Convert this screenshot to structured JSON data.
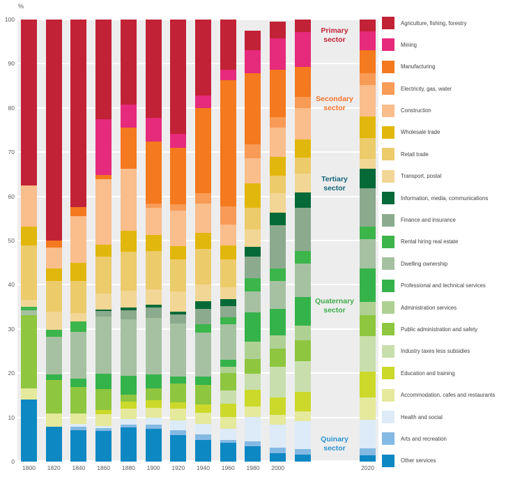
{
  "y_axis": {
    "unit_label": "%",
    "ticks": [
      100,
      90,
      80,
      70,
      60,
      50,
      40,
      30,
      20,
      10,
      0
    ]
  },
  "sector_labels": [
    {
      "lines": [
        "Primary",
        "sector"
      ],
      "color": "#c22236"
    },
    {
      "lines": [
        "Secondary",
        "sector"
      ],
      "color": "#f4732a"
    },
    {
      "lines": [
        "Tertiary",
        "sector"
      ],
      "color": "#136577"
    },
    {
      "lines": [
        "Quaternary",
        "sector"
      ],
      "color": "#41ab49"
    },
    {
      "lines": [
        "Quinary",
        "sector"
      ],
      "color": "#2a93d0"
    }
  ],
  "chart_data": {
    "type": "bar",
    "stacked": true,
    "unit": "%",
    "ylim": [
      0,
      100
    ],
    "grid": true,
    "legend_position": "right",
    "y_ticks": [
      100,
      90,
      80,
      70,
      60,
      50,
      40,
      30,
      20,
      10,
      0
    ],
    "note": "Stacked shares of industry sectors; categories listed top-of-stack first; one unlabelled bar between 2000 and the separated 2020 bar",
    "categories": [
      {
        "name": "Agriculture, fishing, forestry",
        "slug": "agriculture-fishing-forestry",
        "color": "#c22236"
      },
      {
        "name": "Mining",
        "slug": "mining",
        "color": "#e62a7c"
      },
      {
        "name": "Manufacturing",
        "slug": "manufacturing",
        "color": "#f4791f"
      },
      {
        "name": "Electricity, gas, water",
        "slug": "electricity-gas-water",
        "color": "#f89b57"
      },
      {
        "name": "Construction",
        "slug": "construction",
        "color": "#fabd8c"
      },
      {
        "name": "Wholesale trade",
        "slug": "wholesale-trade",
        "color": "#e2b70d"
      },
      {
        "name": "Retail trade",
        "slug": "retail-trade",
        "color": "#eccb6b"
      },
      {
        "name": "Transport, postal",
        "slug": "transport-postal",
        "color": "#f1d695"
      },
      {
        "name": "Information, media, communications",
        "slug": "information-media-communications",
        "color": "#056a38"
      },
      {
        "name": "Finance and insurance",
        "slug": "finance-and-insurance",
        "color": "#8caa8e"
      },
      {
        "name": "Rental hiring real estate",
        "slug": "rental-hiring-real-estate",
        "color": "#3cb54b"
      },
      {
        "name": "Dwelling ownership",
        "slug": "dwelling-ownership",
        "color": "#a6c1a2"
      },
      {
        "name": "Professional and technical services",
        "slug": "professional-and-technical-services",
        "color": "#35b34b"
      },
      {
        "name": "Administration services",
        "slug": "administration-services",
        "color": "#aed193"
      },
      {
        "name": "Public administration and safety",
        "slug": "public-administration-and-safety",
        "color": "#8ec63f"
      },
      {
        "name": "Industry taxes less subsidies",
        "slug": "industry-taxes-less-subsidies",
        "color": "#c8dfad"
      },
      {
        "name": "Education and training",
        "slug": "education-and-training",
        "color": "#ccd92b"
      },
      {
        "name": "Accommodation, cafes and restaurants",
        "slug": "accommodation-cafes-and-restaurants",
        "color": "#e5e99b"
      },
      {
        "name": "Health and social",
        "slug": "health-and-social",
        "color": "#dcebf7"
      },
      {
        "name": "Arts and recreation",
        "slug": "arts-and-recreation",
        "color": "#84b9e3"
      },
      {
        "name": "Other services",
        "slug": "other-services",
        "color": "#0e88c3"
      }
    ],
    "bars": [
      {
        "label": "1800",
        "values": [
          37.5,
          0,
          0,
          0,
          9.3,
          4.3,
          12.3,
          1.6,
          0,
          0,
          0.7,
          1.2,
          0,
          0,
          16.6,
          0,
          0,
          2.4,
          0,
          0,
          14.1
        ]
      },
      {
        "label": "1820",
        "values": [
          50.0,
          0,
          1.6,
          0,
          4.7,
          2.8,
          7.0,
          4.1,
          0,
          0,
          1.6,
          8.5,
          1.2,
          0,
          7.6,
          0,
          0,
          3.0,
          0,
          0,
          7.9
        ]
      },
      {
        "label": "1840",
        "values": [
          42.4,
          0,
          2.1,
          0,
          10.5,
          4.1,
          7.3,
          1.9,
          0,
          0,
          2.4,
          10.6,
          1.8,
          0,
          6.0,
          0,
          0,
          2.4,
          0.7,
          0.7,
          7.1
        ]
      },
      {
        "label": "1860",
        "values": [
          22.6,
          12.6,
          1.0,
          0,
          14.8,
          2.6,
          8.4,
          3.7,
          0.3,
          1.2,
          0,
          13.0,
          3.4,
          0,
          4.8,
          0,
          0.9,
          2.7,
          0.5,
          0.6,
          6.9
        ]
      },
      {
        "label": "1880",
        "values": [
          19.3,
          5.1,
          9.3,
          0,
          14.1,
          4.8,
          8.7,
          3.9,
          0.6,
          2.0,
          0,
          12.8,
          4.3,
          0,
          1.6,
          0,
          1.6,
          2.3,
          1.3,
          0.6,
          7.7
        ]
      },
      {
        "label": "1900",
        "values": [
          22.2,
          5.4,
          14.0,
          1.0,
          6.1,
          3.7,
          8.6,
          3.5,
          0.6,
          2.4,
          0,
          12.8,
          3.2,
          0,
          2.7,
          0,
          1.7,
          2.2,
          1.6,
          0.9,
          7.4
        ]
      },
      {
        "label": "1920",
        "values": [
          25.8,
          3.2,
          12.8,
          1.4,
          8.1,
          3.0,
          7.2,
          4.6,
          0.7,
          2.0,
          0,
          12.0,
          1.5,
          0,
          4.3,
          0,
          1.5,
          2.6,
          2.2,
          1.1,
          6.0
        ]
      },
      {
        "label": "1940",
        "values": [
          17.2,
          2.8,
          19.3,
          2.3,
          6.6,
          3.7,
          8.1,
          3.8,
          1.6,
          3.5,
          1.9,
          10.0,
          1.9,
          0,
          4.4,
          0,
          1.9,
          2.5,
          2.4,
          1.3,
          4.8
        ]
      },
      {
        "label": "1960",
        "values": [
          11.4,
          2.3,
          28.5,
          4.1,
          4.8,
          3.1,
          6.4,
          2.6,
          1.6,
          2.6,
          1.6,
          8.0,
          1.5,
          1.5,
          4.0,
          3.0,
          2.9,
          2.7,
          2.5,
          0.7,
          4.2
        ]
      },
      {
        "label": "1980",
        "values": [
          4.5,
          5.1,
          16.1,
          3.2,
          5.7,
          5.5,
          4.9,
          4.0,
          2.2,
          4.9,
          3.0,
          4.7,
          6.6,
          3.9,
          3.4,
          3.5,
          3.8,
          2.5,
          5.5,
          1.0,
          3.5
        ]
      },
      {
        "label": "2000",
        "values": [
          3.8,
          7.1,
          10.7,
          2.4,
          6.6,
          4.2,
          4.0,
          4.4,
          2.8,
          9.8,
          2.8,
          6.4,
          6.0,
          3.0,
          4.0,
          7.0,
          4.0,
          2.2,
          5.1,
          1.3,
          1.9
        ]
      },
      {
        "label": "",
        "values": [
          2.8,
          7.9,
          6.8,
          2.6,
          7.1,
          4.0,
          3.6,
          4.3,
          3.5,
          9.8,
          2.8,
          7.6,
          6.5,
          3.3,
          4.7,
          7.0,
          4.3,
          2.3,
          6.3,
          1.2,
          1.6
        ]
      },
      {
        "label": "2020",
        "values": [
          2.7,
          4.3,
          5.1,
          2.7,
          7.1,
          4.9,
          4.7,
          2.2,
          4.5,
          8.6,
          2.9,
          6.6,
          7.6,
          3.0,
          4.7,
          8.1,
          5.8,
          5.0,
          6.5,
          1.6,
          1.4
        ],
        "separated": true
      }
    ]
  }
}
